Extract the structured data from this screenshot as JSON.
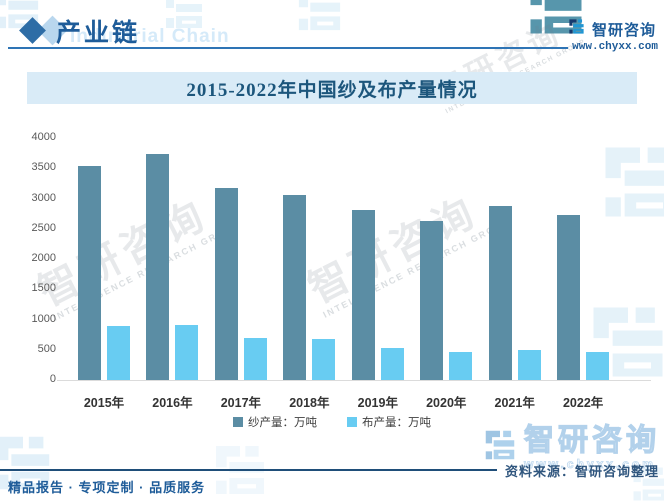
{
  "header": {
    "title": "产业链",
    "subtitle_en": "Industrial Chain",
    "brand": {
      "name": "智研咨询",
      "url": "www.chyxx.com"
    }
  },
  "chart": {
    "title": "2015-2022年中国纱及布产量情况"
  },
  "chart_data": {
    "type": "bar",
    "categories": [
      "2015年",
      "2016年",
      "2017年",
      "2018年",
      "2019年",
      "2020年",
      "2021年",
      "2022年"
    ],
    "series": [
      {
        "name": "纱产量：万吨",
        "color": "#5b8da4",
        "values": [
          3530,
          3730,
          3170,
          3050,
          2810,
          2620,
          2870,
          2720
        ]
      },
      {
        "name": "布产量：万吨",
        "color": "#68ccf2",
        "values": [
          890,
          905,
          690,
          685,
          530,
          460,
          490,
          460
        ]
      }
    ],
    "title": "2015-2022年中国纱及布产量情况",
    "xlabel": "",
    "ylabel": "",
    "ylim": [
      0,
      4000
    ],
    "yticks": [
      0,
      500,
      1000,
      1500,
      2000,
      2500,
      3000,
      3500,
      4000
    ],
    "grid": false,
    "legend_position": "bottom"
  },
  "source": {
    "label": "资料来源：智研咨询整理"
  },
  "footer": {
    "slogan": "精品报告 · 专项定制 · 品质服务"
  },
  "watermark": {
    "text": "智研咨询",
    "subtext": "INTELLIGENCE RESEARCH GROUP"
  },
  "colors": {
    "accent_blue": "#1e5c99",
    "band_bg": "#d9ebf7",
    "bar_dark": "#5b8da4",
    "bar_light": "#68ccf2",
    "rule_blue": "#2e74b5",
    "source_line": "#1f4e79",
    "axis_text": "#595959"
  }
}
